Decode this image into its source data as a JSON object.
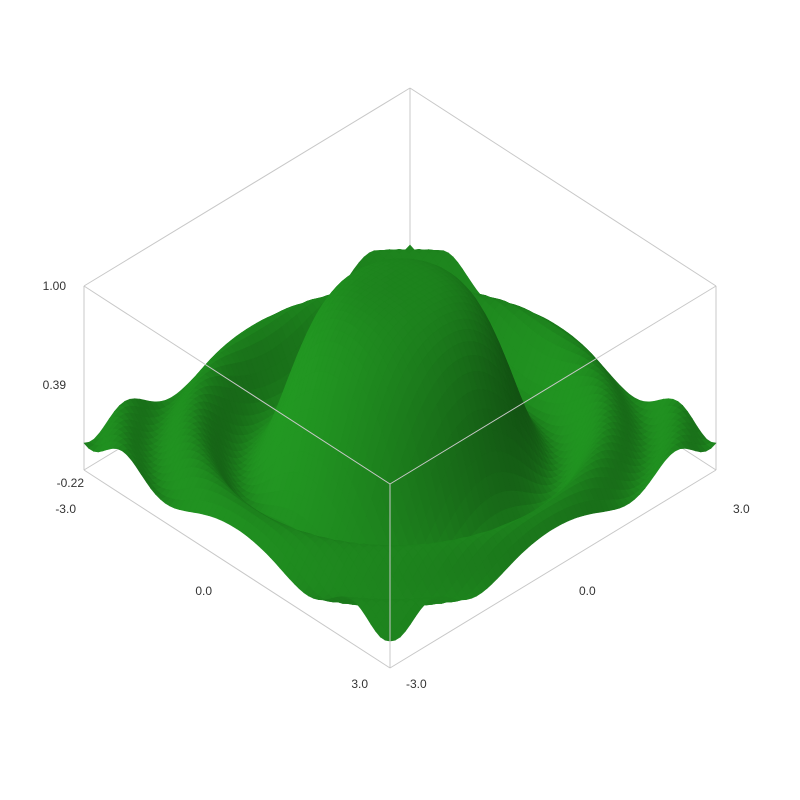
{
  "chart_data": {
    "type": "surface",
    "title": "",
    "xlabel": "",
    "ylabel": "",
    "zlabel": "",
    "function": "sin(x^2+y^2)/(x^2+y^2)",
    "xlim": [
      -3.0,
      3.0
    ],
    "ylim": [
      -3.0,
      3.0
    ],
    "zlim": [
      -0.22,
      1.0
    ],
    "x_ticks": [
      "-3.0",
      "0.0",
      "3.0"
    ],
    "y_ticks": [
      "-3.0",
      "0.0",
      "3.0"
    ],
    "z_ticks": [
      "1.00",
      "0.39",
      "-0.22"
    ],
    "surface_color": "#1f8a1f",
    "grid": false,
    "legend": "none"
  }
}
